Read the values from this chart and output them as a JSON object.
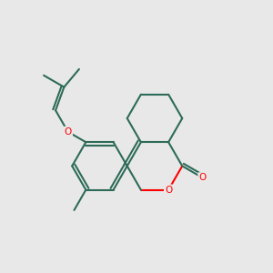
{
  "bg_color": "#e8e8e8",
  "bond_color": "#2d6b58",
  "heteroatom_color": "#ff0000",
  "line_width": 1.5,
  "fig_size": [
    3.0,
    3.0
  ],
  "dpi": 100,
  "xlim": [
    -0.58,
    0.52
  ],
  "ylim": [
    -0.42,
    0.48
  ]
}
